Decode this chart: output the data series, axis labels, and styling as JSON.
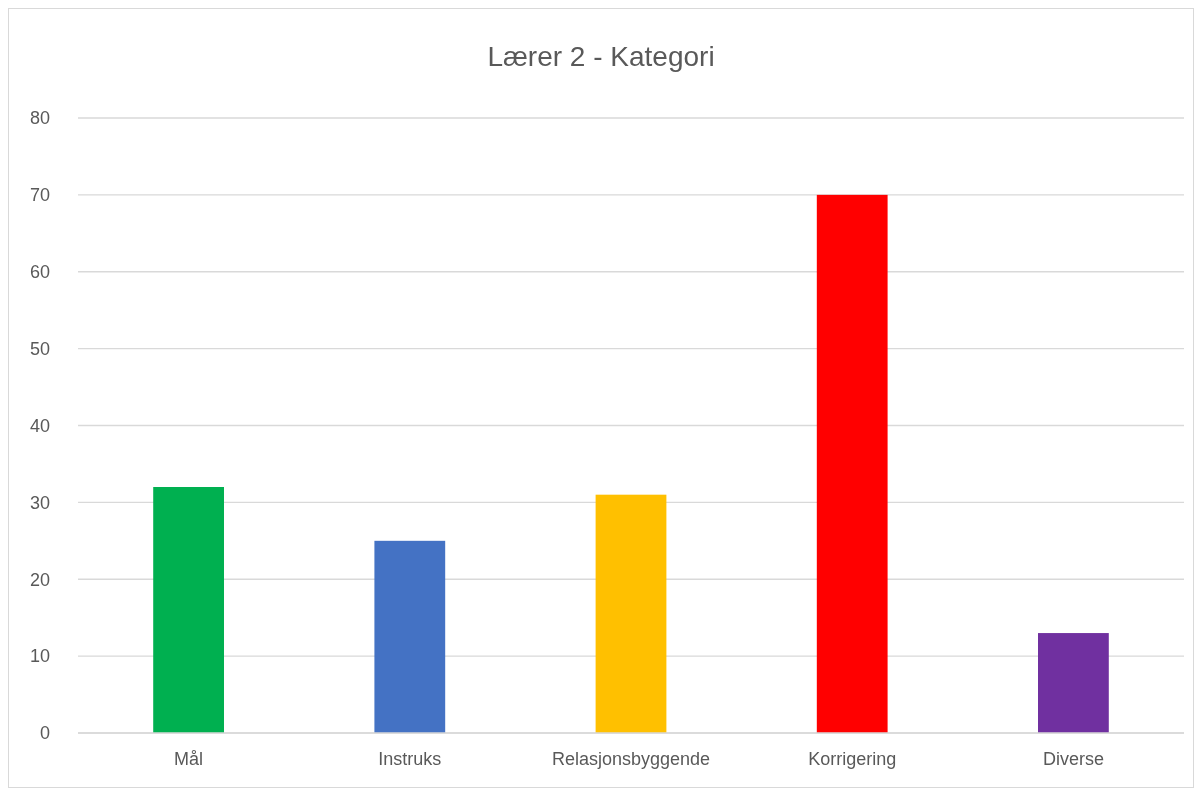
{
  "chart_data": {
    "type": "bar",
    "title": "Lærer 2 - Kategori",
    "categories": [
      "Mål",
      "Instruks",
      "Relasjonsbyggende",
      "Korrigering",
      "Diverse"
    ],
    "values": [
      32,
      25,
      31,
      70,
      13
    ],
    "colors": [
      "#00b050",
      "#4472c4",
      "#ffc000",
      "#ff0000",
      "#7030a0"
    ],
    "ylim": [
      0,
      80
    ],
    "yticks": [
      0,
      10,
      20,
      30,
      40,
      50,
      60,
      70,
      80
    ],
    "grid": "y"
  }
}
